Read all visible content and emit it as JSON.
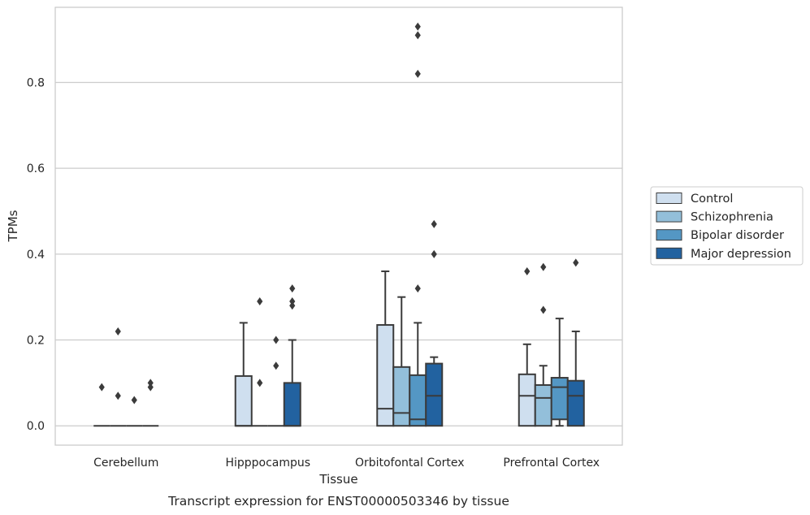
{
  "chart_data": {
    "type": "box",
    "xlabel": "Tissue",
    "ylabel": "TPMs",
    "caption": "Transcript expression for ENST00000503346 by tissue",
    "ylim": [
      -0.045,
      0.975
    ],
    "yticks": [
      0.0,
      0.2,
      0.4,
      0.6,
      0.8
    ],
    "ytick_labels": [
      "0.0",
      "0.2",
      "0.4",
      "0.6",
      "0.8"
    ],
    "grid": "horizontal",
    "legend_position": "right",
    "categories": [
      "Cerebellum",
      "Hipppocampus",
      "Orbitofontal Cortex",
      "Prefrontal Cortex"
    ],
    "series": [
      {
        "name": "Control",
        "color": "#cfdfef",
        "boxes": [
          {
            "q1": 0,
            "median": 0,
            "q3": 0,
            "whislo": 0,
            "whishi": 0,
            "fliers": [
              0.09
            ]
          },
          {
            "q1": 0,
            "median": 0,
            "q3": 0.116,
            "whislo": 0,
            "whishi": 0.24,
            "fliers": []
          },
          {
            "q1": 0,
            "median": 0.04,
            "q3": 0.235,
            "whislo": 0,
            "whishi": 0.36,
            "fliers": []
          },
          {
            "q1": 0,
            "median": 0.07,
            "q3": 0.12,
            "whislo": 0,
            "whishi": 0.19,
            "fliers": [
              0.36
            ]
          }
        ]
      },
      {
        "name": "Schizophrenia",
        "color": "#93bfda",
        "boxes": [
          {
            "q1": 0,
            "median": 0,
            "q3": 0,
            "whislo": 0,
            "whishi": 0,
            "fliers": [
              0.22,
              0.07
            ]
          },
          {
            "q1": 0,
            "median": 0,
            "q3": 0,
            "whislo": 0,
            "whishi": 0,
            "fliers": [
              0.29,
              0.1
            ]
          },
          {
            "q1": 0,
            "median": 0.03,
            "q3": 0.137,
            "whislo": 0,
            "whishi": 0.3,
            "fliers": []
          },
          {
            "q1": 0,
            "median": 0.065,
            "q3": 0.095,
            "whislo": 0,
            "whishi": 0.14,
            "fliers": [
              0.37,
              0.27
            ]
          }
        ]
      },
      {
        "name": "Bipolar disorder",
        "color": "#5497c4",
        "boxes": [
          {
            "q1": 0,
            "median": 0,
            "q3": 0,
            "whislo": 0,
            "whishi": 0,
            "fliers": [
              0.06
            ]
          },
          {
            "q1": 0,
            "median": 0,
            "q3": 0,
            "whislo": 0,
            "whishi": 0,
            "fliers": [
              0.2,
              0.14
            ]
          },
          {
            "q1": 0,
            "median": 0.015,
            "q3": 0.118,
            "whislo": 0,
            "whishi": 0.24,
            "fliers": [
              0.93,
              0.91,
              0.82,
              0.32
            ]
          },
          {
            "q1": 0.015,
            "median": 0.09,
            "q3": 0.112,
            "whislo": 0,
            "whishi": 0.25,
            "fliers": []
          }
        ]
      },
      {
        "name": "Major depression",
        "color": "#2262a0",
        "boxes": [
          {
            "q1": 0,
            "median": 0,
            "q3": 0,
            "whislo": 0,
            "whishi": 0,
            "fliers": [
              0.1,
              0.09
            ]
          },
          {
            "q1": 0,
            "median": 0,
            "q3": 0.1,
            "whislo": 0,
            "whishi": 0.2,
            "fliers": [
              0.32,
              0.29,
              0.28
            ]
          },
          {
            "q1": 0,
            "median": 0.07,
            "q3": 0.145,
            "whislo": 0,
            "whishi": 0.16,
            "fliers": [
              0.47,
              0.4
            ]
          },
          {
            "q1": 0,
            "median": 0.07,
            "q3": 0.105,
            "whislo": 0,
            "whishi": 0.22,
            "fliers": [
              0.38
            ]
          }
        ]
      }
    ]
  }
}
